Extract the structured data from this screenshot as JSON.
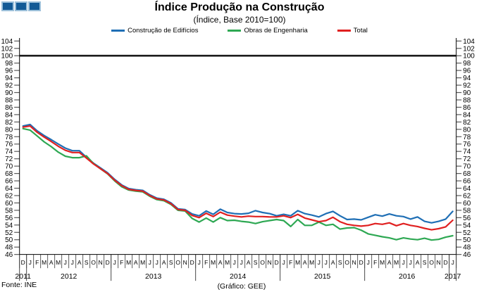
{
  "header": {
    "title": "Índice Produção na Construção",
    "subtitle": "(Índice, Base 2010=100)"
  },
  "footer": {
    "source": "Fonte: INE",
    "credit": "(Gráfico: GEE)"
  },
  "logo": {
    "squares": 3,
    "fill": "#135A96",
    "border": "#9CC0DA"
  },
  "chart_data": {
    "type": "line",
    "title": "Índice Produção na Construção",
    "subtitle": "(Índice, Base 2010=100)",
    "ylabel": "",
    "xlabel": "",
    "ylim": [
      46,
      104
    ],
    "ytick_step": 2,
    "reference_line": 100,
    "grid": false,
    "legend_position": "top",
    "month_labels": [
      "D",
      "J",
      "F",
      "M",
      "A",
      "M",
      "J",
      "J",
      "A",
      "S",
      "O",
      "N",
      "D",
      "J",
      "F",
      "M",
      "A",
      "M",
      "J",
      "J",
      "A",
      "S",
      "O",
      "N",
      "D",
      "J",
      "F",
      "M",
      "A",
      "M",
      "J",
      "J",
      "A",
      "S",
      "O",
      "N",
      "D",
      "J",
      "F",
      "M",
      "A",
      "M",
      "J",
      "J",
      "A",
      "S",
      "O",
      "N",
      "D",
      "J",
      "F",
      "M",
      "A",
      "M",
      "J",
      "J",
      "A",
      "S",
      "O",
      "N",
      "D",
      "J"
    ],
    "years": [
      {
        "label": "2011",
        "start": 0,
        "end": 0
      },
      {
        "label": "2012",
        "start": 1,
        "end": 12
      },
      {
        "label": "2013",
        "start": 13,
        "end": 24
      },
      {
        "label": "2014",
        "start": 25,
        "end": 36
      },
      {
        "label": "2015",
        "start": 37,
        "end": 48
      },
      {
        "label": "2016",
        "start": 49,
        "end": 60
      },
      {
        "label": "2017",
        "start": 61,
        "end": 61
      }
    ],
    "series": [
      {
        "name": "Construção de Edifícios",
        "color": "#1F6FB5",
        "values": [
          80.9,
          81.3,
          79.6,
          78.3,
          77.2,
          76.0,
          74.9,
          74.2,
          74.2,
          72.4,
          70.8,
          69.5,
          68.2,
          66.4,
          64.9,
          63.9,
          63.6,
          63.4,
          62.2,
          61.3,
          61.0,
          60.0,
          58.4,
          58.2,
          57.0,
          56.5,
          57.8,
          56.9,
          58.3,
          57.4,
          57.1,
          57.0,
          57.2,
          57.9,
          57.4,
          57.1,
          56.5,
          56.9,
          56.5,
          57.9,
          57.1,
          56.7,
          56.2,
          57.1,
          57.7,
          56.5,
          55.5,
          55.6,
          55.4,
          56.1,
          56.8,
          56.4,
          57.0,
          56.5,
          56.3,
          55.6,
          56.2,
          55.0,
          54.6,
          55.0,
          55.6,
          57.7
        ]
      },
      {
        "name": "Obras de Engenharia",
        "color": "#2EA853",
        "values": [
          80.2,
          79.8,
          78.2,
          76.6,
          75.3,
          73.8,
          72.7,
          72.3,
          72.3,
          72.8,
          70.7,
          69.3,
          67.9,
          66.0,
          64.4,
          63.5,
          63.2,
          63.0,
          61.8,
          60.9,
          60.6,
          59.6,
          58.0,
          57.8,
          55.8,
          54.8,
          55.9,
          54.8,
          56.0,
          55.2,
          55.3,
          55.0,
          54.8,
          54.4,
          54.9,
          55.2,
          55.5,
          55.2,
          53.6,
          55.5,
          53.9,
          53.9,
          54.8,
          53.9,
          54.2,
          52.9,
          53.2,
          53.3,
          52.6,
          51.6,
          51.2,
          50.8,
          50.5,
          50.0,
          50.5,
          50.2,
          50.0,
          50.4,
          49.9,
          50.1,
          50.7,
          51.1
        ]
      },
      {
        "name": "Total",
        "color": "#E02020",
        "values": [
          80.6,
          80.9,
          79.2,
          77.9,
          76.7,
          75.4,
          74.3,
          73.7,
          73.7,
          72.2,
          70.6,
          69.3,
          68.0,
          66.2,
          64.7,
          63.7,
          63.4,
          63.2,
          62.0,
          61.1,
          60.8,
          59.8,
          58.2,
          58.0,
          56.6,
          56.0,
          57.2,
          56.3,
          57.5,
          56.7,
          56.4,
          56.2,
          56.4,
          56.3,
          56.3,
          56.2,
          56.2,
          56.5,
          56.0,
          56.9,
          55.9,
          55.4,
          54.9,
          55.2,
          56.1,
          54.9,
          54.2,
          53.9,
          53.7,
          53.9,
          54.4,
          54.2,
          54.6,
          53.8,
          54.4,
          53.9,
          53.6,
          53.1,
          52.7,
          53.0,
          53.5,
          55.3
        ]
      }
    ]
  }
}
